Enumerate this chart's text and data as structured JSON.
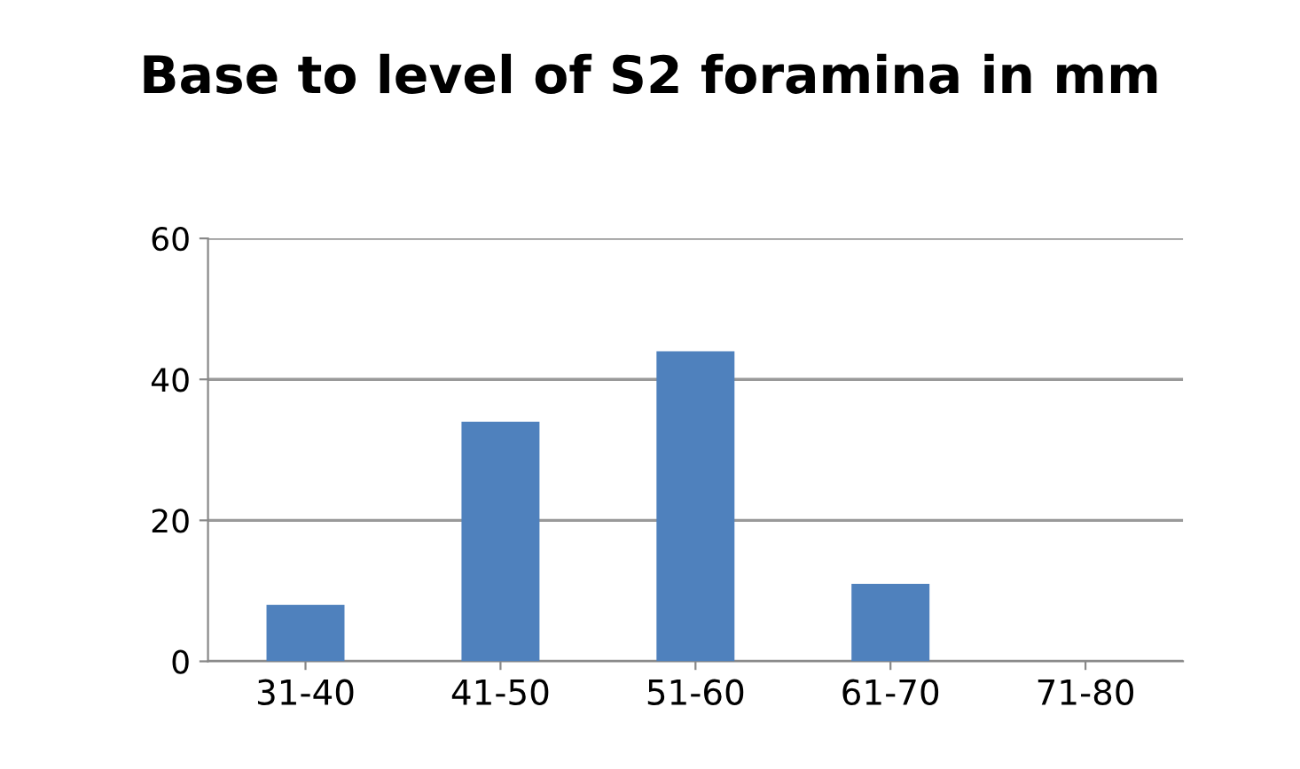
{
  "chart_data": {
    "type": "bar",
    "title": "Base to level of S2 foramina in mm",
    "categories": [
      "31-40",
      "41-50",
      "51-60",
      "61-70",
      "71-80"
    ],
    "values": [
      8,
      34,
      44,
      11,
      0
    ],
    "color": "#4f81bd",
    "ylim": [
      0,
      60
    ],
    "yticks": [
      0,
      20,
      40,
      60
    ],
    "grid": "y"
  }
}
